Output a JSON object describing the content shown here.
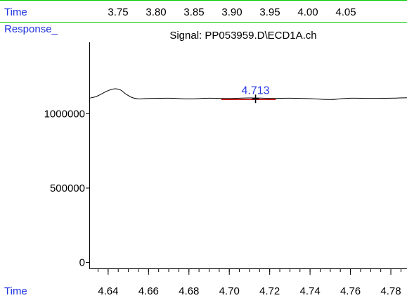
{
  "header": {
    "time_label": "Time",
    "top_ticks": [
      "3.75",
      "3.80",
      "3.85",
      "3.90",
      "3.95",
      "4.00",
      "4.05"
    ],
    "response_label": "Response_"
  },
  "footer": {
    "time_label": "Time"
  },
  "colors": {
    "label_blue": "#1f33e0",
    "trace": "#000000",
    "baseline_marker": "#cc0000",
    "panel_line": "#00cc00"
  },
  "chart_data": {
    "type": "line",
    "title": "Signal: PP053959.D\\ECD1A.ch",
    "xlabel": "Time",
    "ylabel": "Response_",
    "xlim": [
      4.631,
      4.788
    ],
    "ylim": [
      -40000,
      1480000
    ],
    "x_ticks": [
      "4.64",
      "4.66",
      "4.68",
      "4.70",
      "4.72",
      "4.74",
      "4.76",
      "4.78"
    ],
    "y_ticks": [
      "0",
      "500000",
      "1000000"
    ],
    "peak_label": "4.713",
    "peak_marker": {
      "x": 4.713,
      "y": 1100000
    },
    "baseline_segment": {
      "x": [
        4.696,
        4.723
      ],
      "y": 1095000
    },
    "series": [
      {
        "x": [
          4.631,
          4.634,
          4.637,
          4.64,
          4.643,
          4.646,
          4.649,
          4.652,
          4.655,
          4.66,
          4.67,
          4.68,
          4.69,
          4.7,
          4.71,
          4.72,
          4.73,
          4.74,
          4.75,
          4.755,
          4.76,
          4.77,
          4.78,
          4.788
        ],
        "y": [
          1105000,
          1115000,
          1135000,
          1155000,
          1167000,
          1160000,
          1130000,
          1108000,
          1100000,
          1102000,
          1104000,
          1100000,
          1104000,
          1102000,
          1106000,
          1103000,
          1104000,
          1101000,
          1095000,
          1100000,
          1104000,
          1103000,
          1104000,
          1107000
        ]
      }
    ]
  }
}
